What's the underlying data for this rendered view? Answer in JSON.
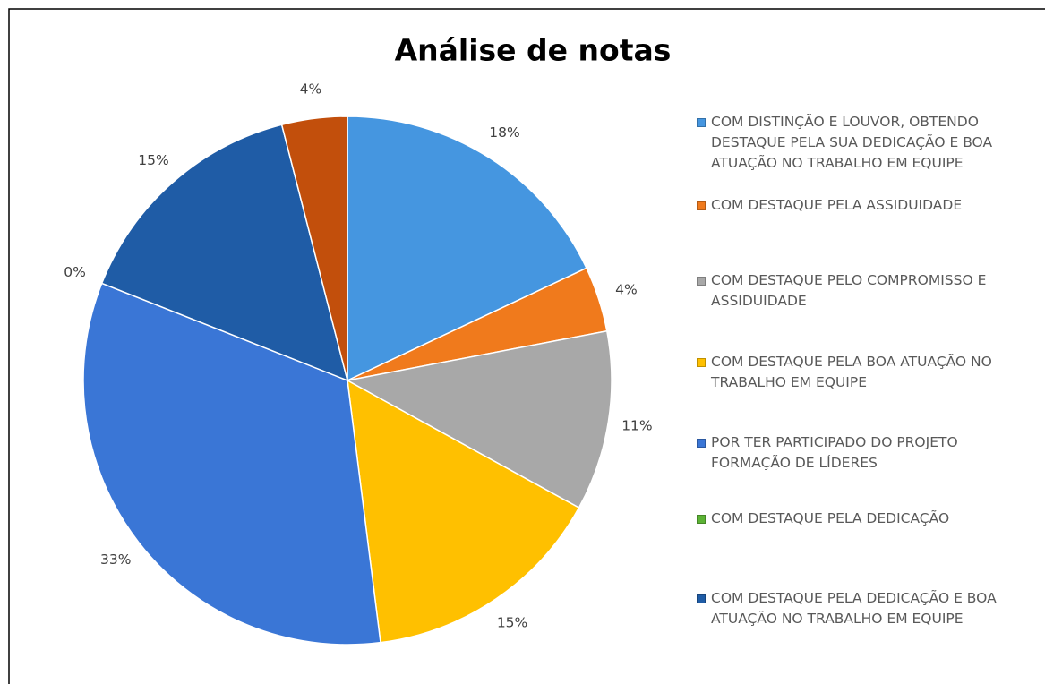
{
  "chart_data": {
    "type": "pie",
    "title": "Análise de notas",
    "categories": [
      "COM DISTINÇÃO E LOUVOR, OBTENDO DESTAQUE PELA SUA DEDICAÇÃO E BOA ATUAÇÃO NO TRABALHO EM EQUIPE",
      "COM DESTAQUE PELA ASSIDUIDADE",
      "COM DESTAQUE PELO COMPROMISSO E ASSIDUIDADE",
      "COM DESTAQUE PELA BOA ATUAÇÃO NO TRABALHO EM EQUIPE",
      "POR TER PARTICIPADO DO PROJETO FORMAÇÃO DE LÍDERES",
      "COM DESTAQUE PELA DEDICAÇÃO",
      "COM DESTAQUE PELA DEDICAÇÃO E BOA ATUAÇÃO NO TRABALHO EM EQUIPE",
      null
    ],
    "values": [
      18,
      4,
      11,
      15,
      33,
      0,
      15,
      4
    ],
    "value_labels": [
      "18%",
      "4%",
      "11%",
      "15%",
      "33%",
      "0%",
      "15%",
      "4%"
    ],
    "colors": [
      "#4596e0",
      "#f07a1c",
      "#a8a8a8",
      "#ffc000",
      "#3a76d6",
      "#5cb335",
      "#1f5ca6",
      "#c24f0c"
    ],
    "legend": "right"
  }
}
